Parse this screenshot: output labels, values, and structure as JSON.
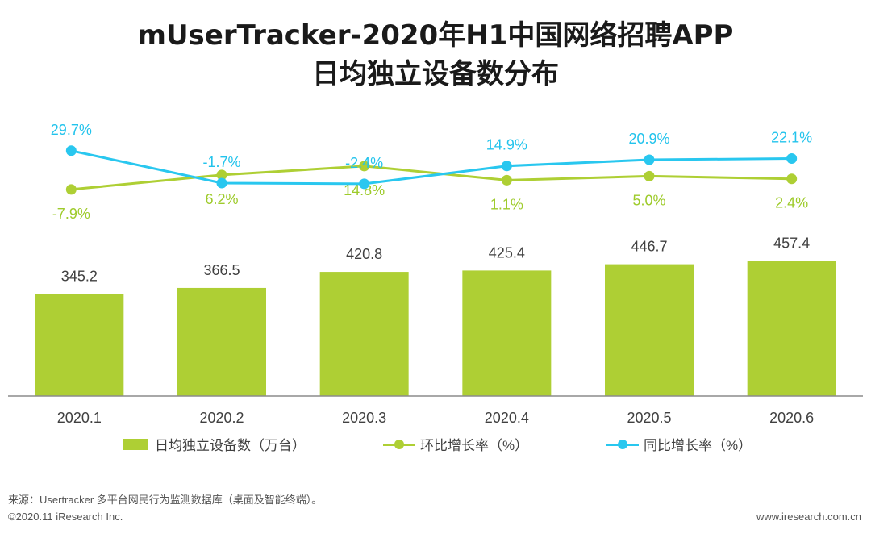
{
  "title_line1": "mUserTracker-2020年H1中国网络招聘APP",
  "title_line2": "日均独立设备数分布",
  "colors": {
    "bar": "#aecf34",
    "mom_line": "#aecf34",
    "yoy_line": "#29c7ef",
    "yoy_label": "#22c3ec",
    "mom_label": "#9ecb2b"
  },
  "chart_data": {
    "type": "bar",
    "categories": [
      "2020.1",
      "2020.2",
      "2020.3",
      "2020.4",
      "2020.5",
      "2020.6"
    ],
    "series": [
      {
        "name": "日均独立设备数（万台）",
        "type": "bar",
        "values": [
          345.2,
          366.5,
          420.8,
          425.4,
          446.7,
          457.4
        ],
        "labels": [
          "345.2",
          "366.5",
          "420.8",
          "425.4",
          "446.7",
          "457.4"
        ]
      },
      {
        "name": "环比增长率（%）",
        "type": "line",
        "values": [
          -7.9,
          6.2,
          14.8,
          1.1,
          5.0,
          2.4
        ],
        "labels": [
          "-7.9%",
          "6.2%",
          "14.8%",
          "1.1%",
          "5.0%",
          "2.4%"
        ]
      },
      {
        "name": "同比增长率（%）",
        "type": "line",
        "values": [
          29.7,
          -1.7,
          -2.4,
          14.9,
          20.9,
          22.1
        ],
        "labels": [
          "29.7%",
          "-1.7%",
          "-2.4%",
          "14.9%",
          "20.9%",
          "22.1%"
        ]
      }
    ]
  },
  "legend": {
    "bar": "日均独立设备数（万台）",
    "mom": "环比增长率（%）",
    "yoy": "同比增长率（%）"
  },
  "source": "来源：Usertracker 多平台网民行为监测数据库（桌面及智能终端）。",
  "copyright": "©2020.11 iResearch Inc.",
  "website": "www.iresearch.com.cn"
}
